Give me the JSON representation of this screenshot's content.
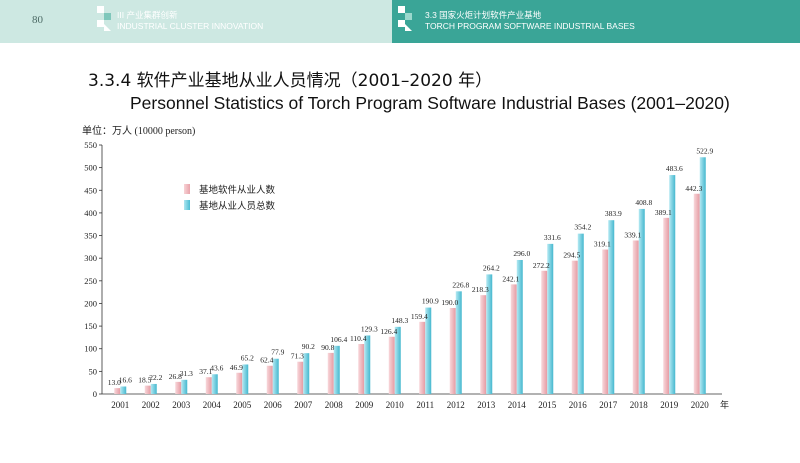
{
  "header": {
    "page_number": "80",
    "left_cn": "III 产业集群创新",
    "left_en": "INDUSTRIAL CLUSTER INNOVATION",
    "right_cn": "3.3 国家火炬计划软件产业基地",
    "right_en": "TORCH PROGRAM SOFTWARE INDUSTRIAL BASES"
  },
  "colors": {
    "header_left_bg": "#cde8e2",
    "header_right_bg": "#3aa597",
    "series_1": "#f2b8bd",
    "series_2": "#6fd0e2"
  },
  "chart_data": {
    "type": "bar",
    "title": "3.3.4 软件产业基地从业人员情况（2001–2020 年）",
    "subtitle": "Personnel Statistics of Torch Program Software Industrial Bases (2001–2020)",
    "ylabel": "单位：万人  (10000 person)",
    "x_unit": "年",
    "categories": [
      "2001",
      "2002",
      "2003",
      "2004",
      "2005",
      "2006",
      "2007",
      "2008",
      "2009",
      "2010",
      "2011",
      "2012",
      "2013",
      "2014",
      "2015",
      "2016",
      "2017",
      "2018",
      "2019",
      "2020"
    ],
    "series": [
      {
        "name": "基地软件从业人数",
        "values": [
          13.0,
          18.5,
          26.8,
          37.1,
          46.9,
          62.4,
          71.3,
          90.8,
          110.4,
          126.4,
          159.4,
          190.0,
          218.3,
          242.1,
          272.2,
          294.5,
          319.1,
          339.1,
          389.1,
          442.3
        ]
      },
      {
        "name": "基地从业人员总数",
        "values": [
          16.6,
          22.2,
          31.3,
          43.6,
          65.2,
          77.9,
          90.2,
          106.4,
          129.3,
          148.3,
          190.9,
          226.8,
          264.2,
          296.0,
          331.6,
          354.2,
          383.9,
          408.8,
          483.6,
          522.9
        ]
      }
    ],
    "ylim": [
      0,
      550
    ],
    "yticks": [
      0,
      50,
      100,
      150,
      200,
      250,
      300,
      350,
      400,
      450,
      500,
      550
    ],
    "grid": false,
    "legend_position": "top-left"
  }
}
